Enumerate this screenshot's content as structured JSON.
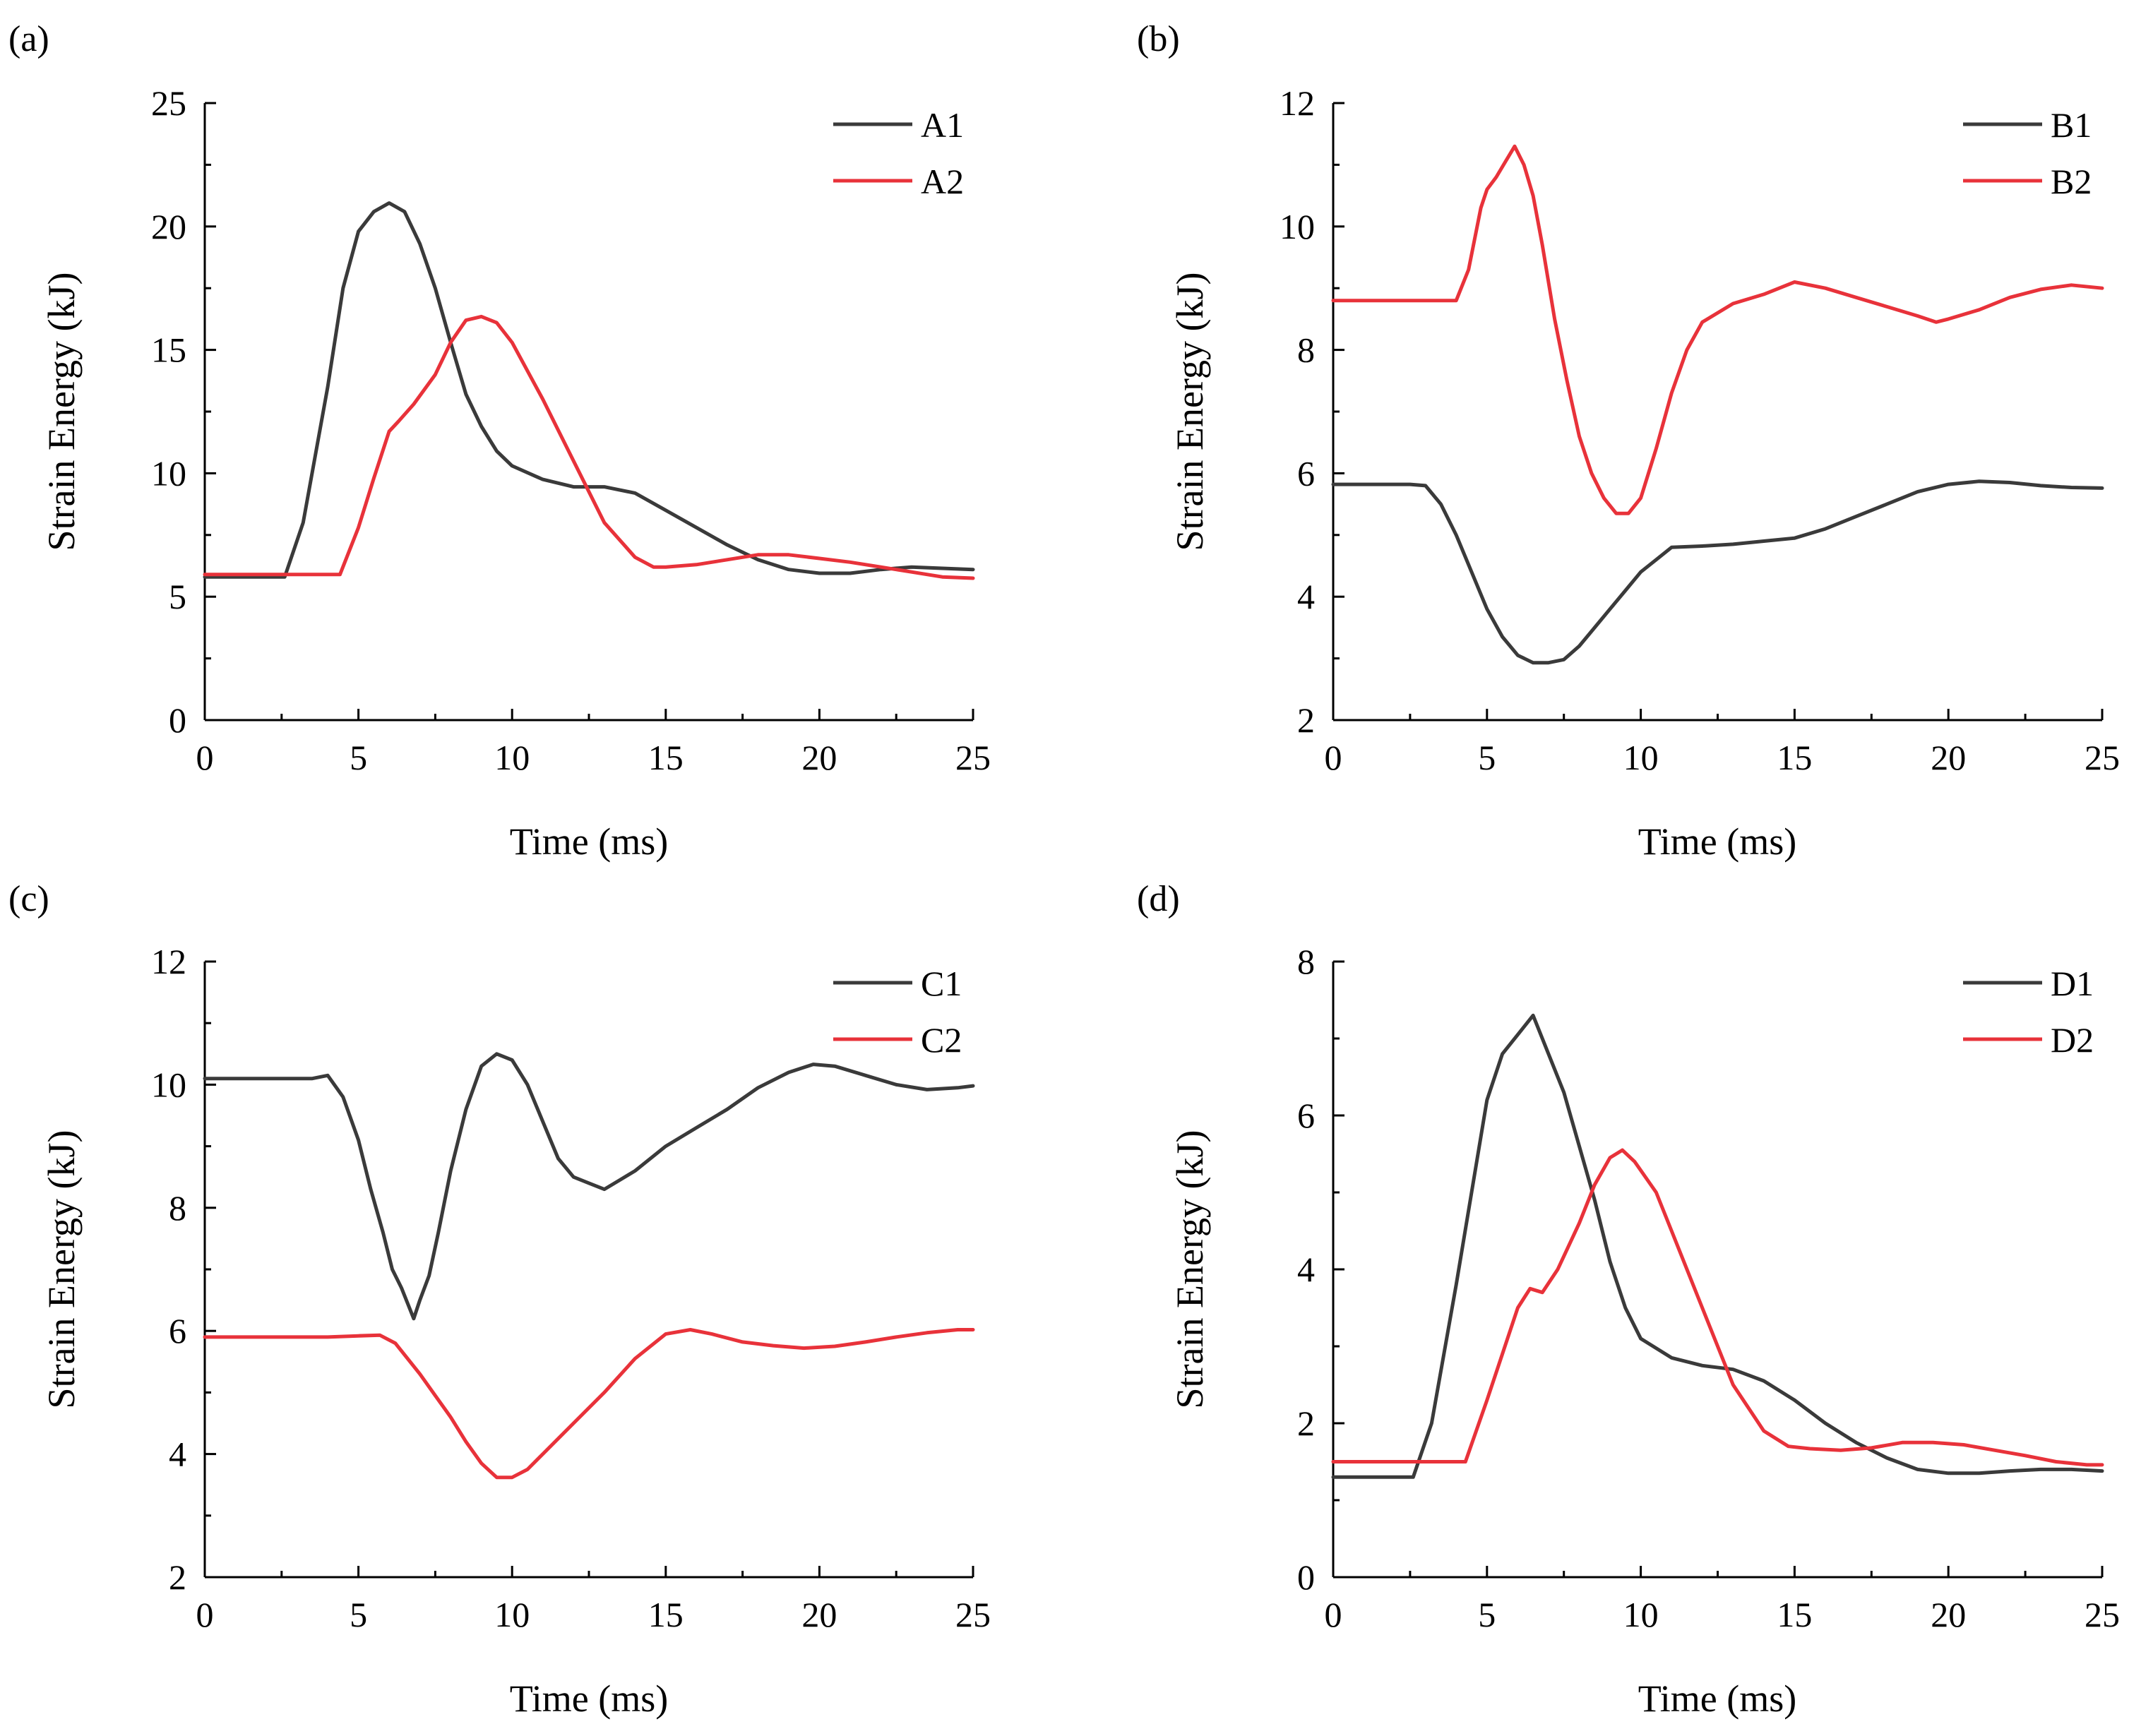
{
  "colors": {
    "series1": "#3a3a3a",
    "series2": "#e8323a",
    "axis": "#000000"
  },
  "chart_data": [
    {
      "panel_label": "(a)",
      "type": "line",
      "xlabel": "Time (ms)",
      "ylabel": "Strain Energy (kJ)",
      "xlim": [
        0,
        25
      ],
      "ylim": [
        0,
        25
      ],
      "xticks": [
        0,
        5,
        10,
        15,
        20,
        25
      ],
      "yticks": [
        0,
        5,
        10,
        15,
        20,
        25
      ],
      "legend_position": "top-right",
      "grid": false,
      "series": [
        {
          "name": "A1",
          "x": [
            0,
            2.6,
            3.2,
            4.0,
            4.5,
            5.0,
            5.5,
            6.0,
            6.5,
            7.0,
            7.5,
            8.0,
            8.5,
            9.0,
            9.5,
            10.0,
            11.0,
            12.0,
            13.0,
            14.0,
            15.0,
            16.0,
            17.0,
            18.0,
            19.0,
            20.0,
            21.0,
            22.0,
            23.0,
            24.0,
            25.0
          ],
          "y": [
            5.8,
            5.8,
            8.0,
            13.5,
            17.5,
            19.8,
            20.6,
            20.95,
            20.6,
            19.3,
            17.5,
            15.3,
            13.2,
            11.9,
            10.9,
            10.3,
            9.75,
            9.45,
            9.45,
            9.2,
            8.5,
            7.8,
            7.1,
            6.5,
            6.1,
            5.95,
            5.95,
            6.1,
            6.2,
            6.15,
            6.1
          ]
        },
        {
          "name": "A2",
          "x": [
            0,
            4.4,
            5.0,
            5.5,
            6.0,
            6.3,
            6.8,
            7.5,
            8.0,
            8.5,
            9.0,
            9.5,
            10.0,
            11.0,
            12.0,
            13.0,
            14.0,
            14.6,
            15.0,
            16.0,
            17.0,
            18.0,
            19.0,
            20.0,
            21.0,
            22.0,
            23.0,
            24.0,
            25.0
          ],
          "y": [
            5.9,
            5.9,
            7.8,
            9.8,
            11.7,
            12.1,
            12.8,
            14.0,
            15.3,
            16.2,
            16.35,
            16.1,
            15.3,
            13.0,
            10.5,
            8.0,
            6.6,
            6.2,
            6.2,
            6.3,
            6.5,
            6.7,
            6.7,
            6.55,
            6.4,
            6.2,
            6.0,
            5.8,
            5.75
          ]
        }
      ]
    },
    {
      "panel_label": "(b)",
      "type": "line",
      "xlabel": "Time (ms)",
      "ylabel": "Strain Energy (kJ)",
      "xlim": [
        0,
        25
      ],
      "ylim": [
        2,
        12
      ],
      "xticks": [
        0,
        5,
        10,
        15,
        20,
        25
      ],
      "yticks": [
        2,
        4,
        6,
        8,
        10,
        12
      ],
      "legend_position": "top-right",
      "grid": false,
      "series": [
        {
          "name": "B1",
          "x": [
            0,
            2.5,
            3.0,
            3.5,
            4.0,
            4.5,
            5.0,
            5.5,
            6.0,
            6.5,
            7.0,
            7.5,
            8.0,
            8.5,
            9.0,
            9.5,
            10.0,
            10.5,
            11.0,
            12.0,
            13.0,
            14.0,
            15.0,
            16.0,
            17.0,
            18.0,
            19.0,
            20.0,
            21.0,
            22.0,
            23.0,
            24.0,
            25.0
          ],
          "y": [
            5.82,
            5.82,
            5.8,
            5.5,
            5.0,
            4.4,
            3.8,
            3.35,
            3.05,
            2.93,
            2.93,
            2.98,
            3.2,
            3.5,
            3.8,
            4.1,
            4.4,
            4.6,
            4.8,
            4.82,
            4.85,
            4.9,
            4.95,
            5.1,
            5.3,
            5.5,
            5.7,
            5.82,
            5.87,
            5.85,
            5.8,
            5.77,
            5.76
          ]
        },
        {
          "name": "B2",
          "x": [
            0,
            4.0,
            4.4,
            4.8,
            5.0,
            5.3,
            5.6,
            5.9,
            6.2,
            6.5,
            6.8,
            7.2,
            7.6,
            8.0,
            8.4,
            8.8,
            9.2,
            9.6,
            10.0,
            10.5,
            11.0,
            11.5,
            12.0,
            13.0,
            14.0,
            15.0,
            16.0,
            17.0,
            18.0,
            19.0,
            19.6,
            20.0,
            21.0,
            22.0,
            23.0,
            24.0,
            25.0
          ],
          "y": [
            8.8,
            8.8,
            9.3,
            10.3,
            10.6,
            10.8,
            11.05,
            11.3,
            11.0,
            10.5,
            9.7,
            8.5,
            7.5,
            6.6,
            6.0,
            5.6,
            5.35,
            5.35,
            5.6,
            6.4,
            7.3,
            8.0,
            8.45,
            8.75,
            8.9,
            9.1,
            9.0,
            8.85,
            8.7,
            8.55,
            8.45,
            8.5,
            8.65,
            8.85,
            8.98,
            9.05,
            9.0
          ]
        }
      ]
    },
    {
      "panel_label": "(c)",
      "type": "line",
      "xlabel": "Time (ms)",
      "ylabel": "Strain Energy (kJ)",
      "xlim": [
        0,
        25
      ],
      "ylim": [
        2,
        12
      ],
      "xticks": [
        0,
        5,
        10,
        15,
        20,
        25
      ],
      "yticks": [
        2,
        4,
        6,
        8,
        10,
        12
      ],
      "legend_position": "top-right",
      "grid": false,
      "series": [
        {
          "name": "C1",
          "x": [
            0,
            3.5,
            4.0,
            4.5,
            5.0,
            5.4,
            5.8,
            6.1,
            6.4,
            6.6,
            6.8,
            7.0,
            7.3,
            7.6,
            8.0,
            8.5,
            9.0,
            9.5,
            10.0,
            10.5,
            11.0,
            11.5,
            12.0,
            12.5,
            13.0,
            13.5,
            14.0,
            15.0,
            16.0,
            17.0,
            18.0,
            19.0,
            19.8,
            20.5,
            21.5,
            22.5,
            23.5,
            24.5,
            25.0
          ],
          "y": [
            10.1,
            10.1,
            10.15,
            9.8,
            9.1,
            8.3,
            7.6,
            7.0,
            6.7,
            6.45,
            6.2,
            6.5,
            6.9,
            7.6,
            8.6,
            9.6,
            10.3,
            10.5,
            10.4,
            10.0,
            9.4,
            8.8,
            8.5,
            8.4,
            8.3,
            8.45,
            8.6,
            9.0,
            9.3,
            9.6,
            9.95,
            10.2,
            10.33,
            10.3,
            10.15,
            10.0,
            9.92,
            9.95,
            9.98
          ]
        },
        {
          "name": "C2",
          "x": [
            0,
            4.0,
            5.0,
            5.7,
            6.2,
            7.0,
            7.5,
            8.0,
            8.5,
            9.0,
            9.5,
            10.0,
            10.5,
            11.0,
            12.0,
            13.0,
            14.0,
            15.0,
            15.8,
            16.5,
            17.5,
            18.5,
            19.5,
            20.5,
            21.5,
            22.5,
            23.5,
            24.5,
            25.0
          ],
          "y": [
            5.9,
            5.9,
            5.92,
            5.93,
            5.8,
            5.3,
            4.95,
            4.6,
            4.2,
            3.85,
            3.62,
            3.62,
            3.75,
            4.0,
            4.5,
            5.0,
            5.55,
            5.95,
            6.02,
            5.95,
            5.82,
            5.76,
            5.72,
            5.75,
            5.82,
            5.9,
            5.97,
            6.02,
            6.02
          ]
        }
      ]
    },
    {
      "panel_label": "(d)",
      "type": "line",
      "xlabel": "Time (ms)",
      "ylabel": "Strain Energy (kJ)",
      "xlim": [
        0,
        25
      ],
      "ylim": [
        0,
        8
      ],
      "xticks": [
        0,
        5,
        10,
        15,
        20,
        25
      ],
      "yticks": [
        0,
        2,
        4,
        6,
        8
      ],
      "legend_position": "top-right",
      "grid": false,
      "series": [
        {
          "name": "D1",
          "x": [
            0,
            2.6,
            3.2,
            4.0,
            4.5,
            5.0,
            5.5,
            6.0,
            6.5,
            7.0,
            7.5,
            8.0,
            8.5,
            9.0,
            9.5,
            10.0,
            11.0,
            12.0,
            13.0,
            14.0,
            15.0,
            16.0,
            17.0,
            18.0,
            19.0,
            20.0,
            21.0,
            22.0,
            23.0,
            24.0,
            25.0
          ],
          "y": [
            1.3,
            1.3,
            2.0,
            3.8,
            5.0,
            6.2,
            6.8,
            7.05,
            7.3,
            6.8,
            6.3,
            5.6,
            4.9,
            4.1,
            3.5,
            3.1,
            2.85,
            2.75,
            2.7,
            2.55,
            2.3,
            2.0,
            1.75,
            1.55,
            1.4,
            1.35,
            1.35,
            1.38,
            1.4,
            1.4,
            1.38
          ]
        },
        {
          "name": "D2",
          "x": [
            0,
            4.3,
            5.0,
            5.5,
            6.0,
            6.4,
            6.8,
            7.3,
            8.0,
            8.5,
            9.0,
            9.4,
            9.8,
            10.5,
            11.0,
            12.0,
            13.0,
            14.0,
            14.8,
            15.5,
            16.5,
            17.5,
            18.5,
            19.5,
            20.5,
            21.5,
            22.5,
            23.5,
            24.5,
            25.0
          ],
          "y": [
            1.5,
            1.5,
            2.3,
            2.9,
            3.5,
            3.75,
            3.7,
            4.0,
            4.6,
            5.1,
            5.45,
            5.55,
            5.4,
            5.0,
            4.5,
            3.5,
            2.5,
            1.9,
            1.7,
            1.67,
            1.65,
            1.68,
            1.75,
            1.75,
            1.72,
            1.65,
            1.58,
            1.5,
            1.46,
            1.46
          ]
        }
      ]
    }
  ]
}
